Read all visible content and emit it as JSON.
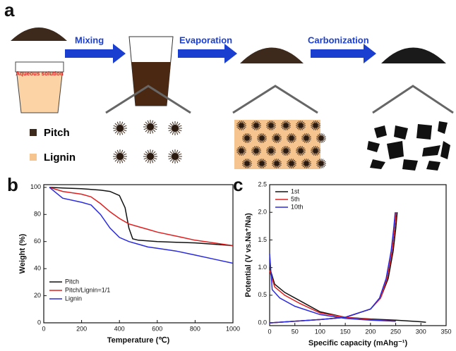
{
  "schematic": {
    "panel_label": "a",
    "steps": [
      "Mixing",
      "Evaporation",
      "Carbonization"
    ],
    "beaker_text": "Aqueous solution",
    "legend": [
      "Pitch",
      "Lignin"
    ]
  },
  "chart_data": [
    {
      "type": "line",
      "panel_label": "b",
      "x_label": "Temperature (℃)",
      "y_label": "Weight (%)",
      "xlim": [
        0,
        1000
      ],
      "xticks": [
        0,
        200,
        400,
        600,
        800,
        1000
      ],
      "ylim": [
        0,
        102
      ],
      "yticks": [
        0,
        20,
        40,
        60,
        80,
        100
      ],
      "legend": "lower left",
      "series": [
        {
          "name": "Pitch",
          "color": "#111111",
          "x": [
            30,
            100,
            200,
            300,
            350,
            400,
            430,
            450,
            470,
            500,
            600,
            700,
            800,
            900,
            1000
          ],
          "values": [
            100,
            99.5,
            99,
            98,
            97,
            94,
            85,
            70,
            62,
            61,
            60,
            59.5,
            59,
            58,
            57
          ]
        },
        {
          "name": "Pitch/Lignin=1/1",
          "color": "#e02020",
          "x": [
            30,
            100,
            200,
            250,
            300,
            350,
            400,
            450,
            500,
            550,
            600,
            700,
            800,
            900,
            1000
          ],
          "values": [
            100,
            97,
            95,
            93,
            88,
            82,
            77,
            73,
            71,
            69,
            67,
            64,
            61,
            59,
            57
          ]
        },
        {
          "name": "Lignin",
          "color": "#2a2ae0",
          "x": [
            30,
            100,
            200,
            250,
            300,
            350,
            400,
            450,
            500,
            550,
            600,
            700,
            800,
            900,
            1000
          ],
          "values": [
            100,
            92,
            89,
            87,
            80,
            70,
            63,
            60,
            58,
            56,
            55,
            53,
            50,
            47,
            44
          ]
        }
      ]
    },
    {
      "type": "line",
      "panel_label": "c",
      "x_label": "Specific capacity (mAhg⁻¹)",
      "y_label": "Potential (V vs.Na⁺/Na)",
      "xlim": [
        0,
        350
      ],
      "xticks": [
        0,
        50,
        100,
        150,
        200,
        250,
        300,
        350
      ],
      "ylim": [
        -0.05,
        2.5
      ],
      "yticks": [
        {
          "value": 0,
          "label": "0.0"
        },
        0.5,
        {
          "value": 1,
          "label": "1.0"
        },
        1.5,
        {
          "value": 2,
          "label": "2.0"
        },
        2.5
      ],
      "legend": "upper left",
      "series": [
        {
          "name": "1st",
          "color": "#111111",
          "x": [
            0,
            10,
            30,
            60,
            100,
            150,
            200,
            250,
            300,
            310,
            null,
            0,
            50,
            100,
            150,
            200,
            220,
            235,
            245,
            250,
            253
          ],
          "values": [
            1.0,
            0.7,
            0.55,
            0.4,
            0.2,
            0.1,
            0.07,
            0.05,
            0.02,
            0.01,
            null,
            0.0,
            0.03,
            0.06,
            0.1,
            0.25,
            0.45,
            0.8,
            1.3,
            1.7,
            2.0
          ]
        },
        {
          "name": "5th",
          "color": "#e02020",
          "x": [
            0,
            10,
            30,
            60,
            100,
            150,
            200,
            250,
            null,
            0,
            50,
            100,
            150,
            200,
            220,
            233,
            243,
            248,
            251
          ],
          "values": [
            0.95,
            0.65,
            0.5,
            0.35,
            0.18,
            0.1,
            0.06,
            0.03,
            null,
            0.0,
            0.03,
            0.06,
            0.1,
            0.25,
            0.45,
            0.8,
            1.3,
            1.7,
            2.0
          ]
        },
        {
          "name": "10th",
          "color": "#2a2ae0",
          "x": [
            0,
            5,
            20,
            50,
            100,
            150,
            200,
            250,
            null,
            0,
            50,
            100,
            150,
            200,
            218,
            231,
            241,
            246,
            249
          ],
          "values": [
            1.25,
            0.6,
            0.45,
            0.3,
            0.15,
            0.08,
            0.05,
            0.03,
            null,
            0.0,
            0.03,
            0.06,
            0.1,
            0.25,
            0.45,
            0.8,
            1.3,
            1.7,
            2.0
          ]
        }
      ]
    }
  ]
}
